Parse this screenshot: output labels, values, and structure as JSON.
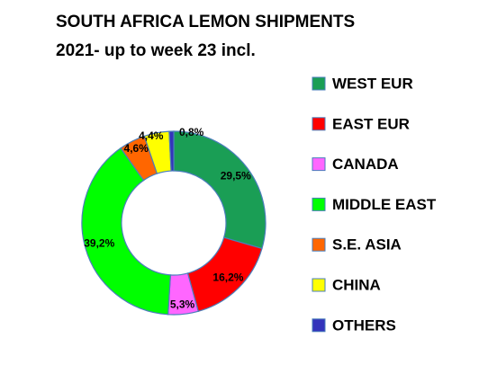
{
  "chart_data": {
    "type": "donut",
    "title": "SOUTH AFRICA LEMON SHIPMENTS",
    "subtitle": "2021- up to week 23 incl.",
    "categories": [
      "WEST EUR",
      "EAST EUR",
      "CANADA",
      "MIDDLE EAST",
      "S.E. ASIA",
      "CHINA",
      "OTHERS"
    ],
    "values": [
      29.5,
      16.2,
      5.3,
      39.2,
      4.6,
      4.4,
      0.8
    ],
    "value_labels": [
      "29,5%",
      "16,2%",
      "5,3%",
      "39,2%",
      "4,6%",
      "4,4%",
      "0,8%"
    ],
    "colors": [
      "#1a9e55",
      "#ff0000",
      "#ff66ff",
      "#00ff00",
      "#ff6600",
      "#ffff00",
      "#3333bb"
    ],
    "legend": "right"
  }
}
